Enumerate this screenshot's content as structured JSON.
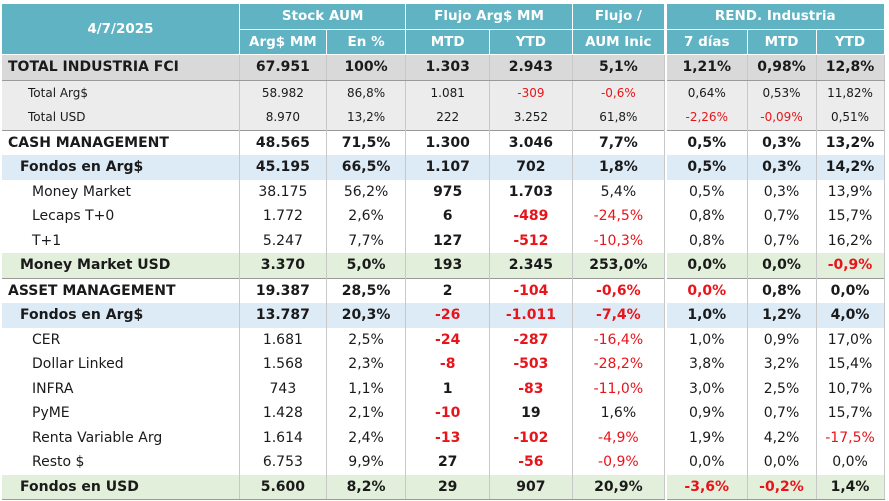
{
  "header": {
    "date": "4/7/2025",
    "stock_aum": "Stock AUM",
    "flujo": "Flujo Arg$ MM",
    "flujo_aum": "Flujo /",
    "flujo_aum2": "AUM Inic",
    "rend": "REND. Industria",
    "arg_mm": "Arg$ MM",
    "pct": "En %",
    "mtd": "MTD",
    "ytd": "YTD",
    "d7": "7 días",
    "rmtd": "MTD",
    "rytd": "YTD"
  },
  "rows": [
    {
      "label": "TOTAL INDUSTRIA FCI",
      "arg": "67.951",
      "pct": "100%",
      "mtd": "1.303",
      "ytd": "2.943",
      "flujo": "5,1%",
      "d7": "1,21%",
      "rmtd": "0,98%",
      "rytd": "12,8%"
    },
    {
      "label": "Total Arg$",
      "arg": "58.982",
      "pct": "86,8%",
      "mtd": "1.081",
      "ytd": "-309",
      "flujo": "-0,6%",
      "d7": "0,64%",
      "rmtd": "0,53%",
      "rytd": "11,82%"
    },
    {
      "label": "Total USD",
      "arg": "8.970",
      "pct": "13,2%",
      "mtd": "222",
      "ytd": "3.252",
      "flujo": "61,8%",
      "d7": "-2,26%",
      "rmtd": "-0,09%",
      "rytd": "0,51%"
    },
    {
      "label": "CASH MANAGEMENT",
      "arg": "48.565",
      "pct": "71,5%",
      "mtd": "1.300",
      "ytd": "3.046",
      "flujo": "7,7%",
      "d7": "0,5%",
      "rmtd": "0,3%",
      "rytd": "13,2%"
    },
    {
      "label": "Fondos en Arg$",
      "arg": "45.195",
      "pct": "66,5%",
      "mtd": "1.107",
      "ytd": "702",
      "flujo": "1,8%",
      "d7": "0,5%",
      "rmtd": "0,3%",
      "rytd": "14,2%"
    },
    {
      "label": "Money Market",
      "arg": "38.175",
      "pct": "56,2%",
      "mtd": "975",
      "ytd": "1.703",
      "flujo": "5,4%",
      "d7": "0,5%",
      "rmtd": "0,3%",
      "rytd": "13,9%"
    },
    {
      "label": "Lecaps T+0",
      "arg": "1.772",
      "pct": "2,6%",
      "mtd": "6",
      "ytd": "-489",
      "flujo": "-24,5%",
      "d7": "0,8%",
      "rmtd": "0,7%",
      "rytd": "15,7%"
    },
    {
      "label": "T+1",
      "arg": "5.247",
      "pct": "7,7%",
      "mtd": "127",
      "ytd": "-512",
      "flujo": "-10,3%",
      "d7": "0,8%",
      "rmtd": "0,7%",
      "rytd": "16,2%"
    },
    {
      "label": "Money Market USD",
      "arg": "3.370",
      "pct": "5,0%",
      "mtd": "193",
      "ytd": "2.345",
      "flujo": "253,0%",
      "d7": "0,0%",
      "rmtd": "0,0%",
      "rytd": "-0,9%"
    },
    {
      "label": "ASSET MANAGEMENT",
      "arg": "19.387",
      "pct": "28,5%",
      "mtd": "2",
      "ytd": "-104",
      "flujo": "-0,6%",
      "d7": "0,0%",
      "rmtd": "0,8%",
      "rytd": "0,0%"
    },
    {
      "label": "Fondos en Arg$",
      "arg": "13.787",
      "pct": "20,3%",
      "mtd": "-26",
      "ytd": "-1.011",
      "flujo": "-7,4%",
      "d7": "1,0%",
      "rmtd": "1,2%",
      "rytd": "4,0%"
    },
    {
      "label": "CER",
      "arg": "1.681",
      "pct": "2,5%",
      "mtd": "-24",
      "ytd": "-287",
      "flujo": "-16,4%",
      "d7": "1,0%",
      "rmtd": "0,9%",
      "rytd": "17,0%"
    },
    {
      "label": "Dollar Linked",
      "arg": "1.568",
      "pct": "2,3%",
      "mtd": "-8",
      "ytd": "-503",
      "flujo": "-28,2%",
      "d7": "3,8%",
      "rmtd": "3,2%",
      "rytd": "15,4%"
    },
    {
      "label": "INFRA",
      "arg": "743",
      "pct": "1,1%",
      "mtd": "1",
      "ytd": "-83",
      "flujo": "-11,0%",
      "d7": "3,0%",
      "rmtd": "2,5%",
      "rytd": "10,7%"
    },
    {
      "label": "PyME",
      "arg": "1.428",
      "pct": "2,1%",
      "mtd": "-10",
      "ytd": "19",
      "flujo": "1,6%",
      "d7": "0,9%",
      "rmtd": "0,7%",
      "rytd": "15,7%"
    },
    {
      "label": "Renta Variable Arg",
      "arg": "1.614",
      "pct": "2,4%",
      "mtd": "-13",
      "ytd": "-102",
      "flujo": "-4,9%",
      "d7": "1,9%",
      "rmtd": "4,2%",
      "rytd": "-17,5%"
    },
    {
      "label": "Resto $",
      "arg": "6.753",
      "pct": "9,9%",
      "mtd": "27",
      "ytd": "-56",
      "flujo": "-0,9%",
      "d7": "0,0%",
      "rmtd": "0,0%",
      "rytd": "0,0%"
    },
    {
      "label": "Fondos en USD",
      "arg": "5.600",
      "pct": "8,2%",
      "mtd": "29",
      "ytd": "907",
      "flujo": "20,9%",
      "d7": "-3,6%",
      "rmtd": "-0,2%",
      "rytd": "1,4%"
    }
  ],
  "colors": {
    "header": "#5fb3c3",
    "total": "#d9d9d9",
    "fondos": "#ddebf7",
    "usd": "#e2efda",
    "negative": "#e8141a"
  }
}
